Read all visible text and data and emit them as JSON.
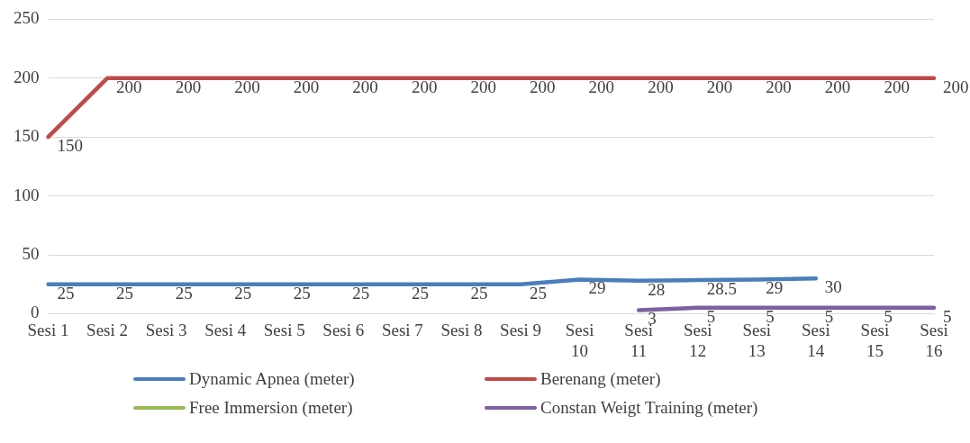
{
  "chart_data": {
    "type": "line",
    "categories": [
      "Sesi 1",
      "Sesi 2",
      "Sesi 3",
      "Sesi 4",
      "Sesi 5",
      "Sesi 6",
      "Sesi 7",
      "Sesi 8",
      "Sesi 9",
      "Sesi 10",
      "Sesi 11",
      "Sesi 12",
      "Sesi 13",
      "Sesi 14",
      "Sesi 15",
      "Sesi 16"
    ],
    "series": [
      {
        "name": "Dynamic Apnea (meter)",
        "color": "#4a7ebb",
        "values": [
          25,
          25,
          25,
          25,
          25,
          25,
          25,
          25,
          25,
          29,
          28,
          28.5,
          29,
          30,
          null,
          null
        ]
      },
      {
        "name": "Berenang (meter)",
        "color": "#be4b48",
        "values": [
          150,
          200,
          200,
          200,
          200,
          200,
          200,
          200,
          200,
          200,
          200,
          200,
          200,
          200,
          200,
          200
        ]
      },
      {
        "name": "Free Immersion (meter)",
        "color": "#98b954",
        "values": [
          null,
          null,
          null,
          null,
          null,
          null,
          null,
          null,
          null,
          null,
          null,
          null,
          null,
          null,
          null,
          null
        ]
      },
      {
        "name": "Constan Weigt Training (meter)",
        "color": "#7d60a0",
        "values": [
          null,
          null,
          null,
          null,
          null,
          null,
          null,
          null,
          null,
          null,
          3,
          5,
          5,
          5,
          5,
          5
        ]
      }
    ],
    "ylim": [
      0,
      250
    ],
    "yticks": [
      0,
      50,
      100,
      150,
      200,
      250
    ],
    "grid": "y",
    "legend": "bottom",
    "data_labels": true,
    "marker": "none"
  }
}
